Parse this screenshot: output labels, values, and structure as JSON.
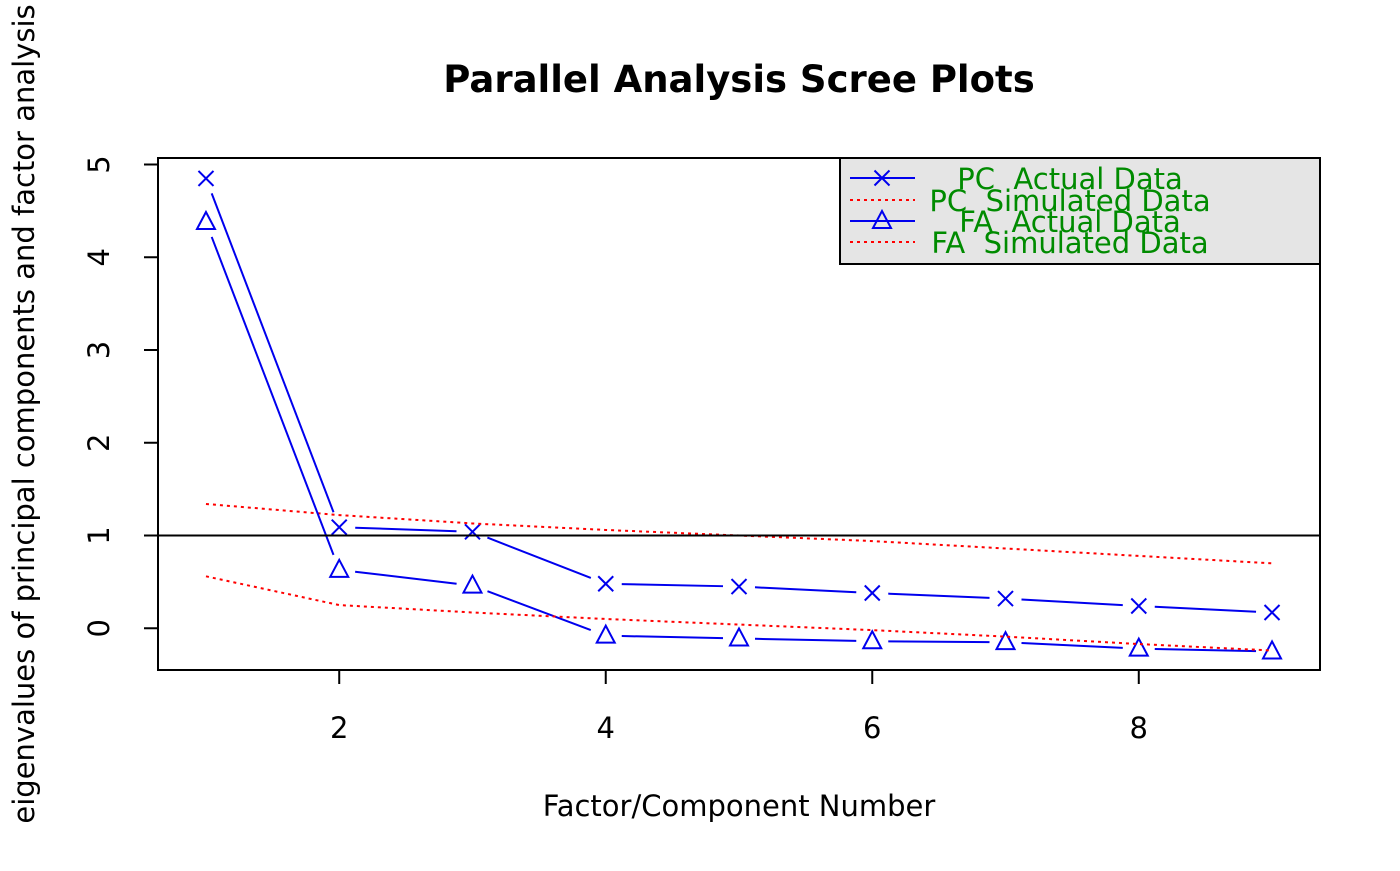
{
  "chart_data": {
    "type": "line",
    "title": "Parallel Analysis Scree Plots",
    "xlabel": "Factor/Component Number",
    "ylabel": "eigenvalues of principal components and factor analysis",
    "xlim": [
      0.64,
      9.36
    ],
    "ylim": [
      -0.45,
      5.07
    ],
    "x_ticks": [
      2,
      4,
      6,
      8
    ],
    "y_ticks": [
      0,
      1,
      2,
      3,
      4,
      5
    ],
    "x": [
      1,
      2,
      3,
      4,
      5,
      6,
      7,
      8,
      9
    ],
    "reference_line": {
      "y": 1,
      "color": "#000000"
    },
    "grid": false,
    "legend_position": "top-right",
    "series": [
      {
        "name": "PC  Actual Data",
        "marker": "x",
        "line": "solid",
        "color": "#0000ee",
        "values": [
          4.85,
          1.09,
          1.04,
          0.48,
          0.45,
          0.38,
          0.32,
          0.24,
          0.17
        ]
      },
      {
        "name": "PC  Simulated Data",
        "marker": "none",
        "line": "dotted",
        "color": "#ff0000",
        "values": [
          1.34,
          1.22,
          1.13,
          1.06,
          1.0,
          0.94,
          0.86,
          0.78,
          0.7
        ]
      },
      {
        "name": "FA  Actual Data",
        "marker": "triangle",
        "line": "solid",
        "color": "#0000ee",
        "values": [
          4.38,
          0.63,
          0.46,
          -0.08,
          -0.11,
          -0.14,
          -0.15,
          -0.22,
          -0.25
        ]
      },
      {
        "name": "FA  Simulated Data",
        "marker": "none",
        "line": "dotted",
        "color": "#ff0000",
        "values": [
          0.56,
          0.25,
          0.17,
          0.1,
          0.04,
          -0.02,
          -0.09,
          -0.17,
          -0.24
        ]
      }
    ]
  }
}
